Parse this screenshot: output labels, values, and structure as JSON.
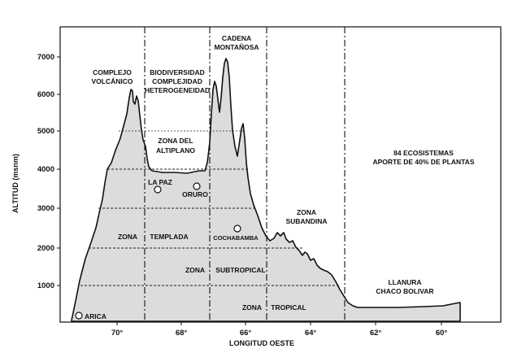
{
  "axes": {
    "y_title": "ALTITUD  (msnm)",
    "x_title": "LONGITUD  OESTE",
    "y_ticks": [
      "1000",
      "2000",
      "3000",
      "4000",
      "5000",
      "6000",
      "7000"
    ],
    "x_ticks": [
      "70°",
      "68°",
      "66°",
      "64°",
      "62°",
      "60°"
    ]
  },
  "regions": {
    "volcanic": [
      "COMPLEJO",
      "VOLCÁNICO"
    ],
    "altiplano_top": [
      "BIODIVERSIDAD",
      "COMPLEJIDAD",
      "HETEROGENEIDAD"
    ],
    "cordillera": [
      "CADENA",
      "MONTAÑOSA"
    ],
    "ecosystems": [
      "84 ECOSISTEMAS",
      "APORTE DE 40% DE PLANTAS"
    ],
    "altiplano_zone": [
      "ZONA DEL",
      "ALTIPLANO"
    ],
    "subandina": [
      "ZONA",
      "SUBANDINA"
    ],
    "chaco": [
      "LLANURA",
      "CHACO BOLIVAR"
    ]
  },
  "bands": {
    "templada": [
      "ZONA",
      "TEMPLADA"
    ],
    "subtropical": [
      "ZONA",
      "SUBTROPICAL"
    ],
    "tropical": [
      "ZONA",
      "TROPICAL"
    ]
  },
  "cities": {
    "arica": "ARICA",
    "la_paz": "LA PAZ",
    "oruro": "ORURO",
    "cochabamba": "COCHABAMBA"
  },
  "colors": {
    "terrain_fill": "#dcdcdc",
    "line": "#111111",
    "background": "#ffffff"
  }
}
